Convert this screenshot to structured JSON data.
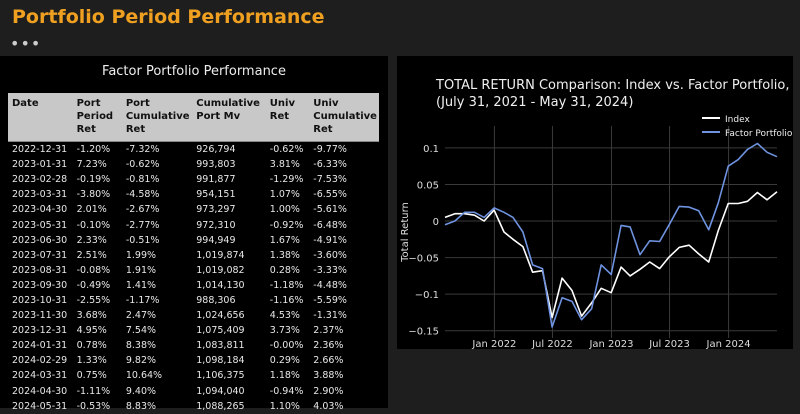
{
  "page": {
    "title": "Portfolio Period Performance",
    "menu_glyph": "•••"
  },
  "table": {
    "title": "Factor Portfolio Performance",
    "headers": [
      "Date",
      "Port Period Ret",
      "Port Cumulative Ret",
      "Cumulative Port Mv",
      "Univ Ret",
      "Univ Cumulative Ret"
    ],
    "rows": [
      [
        "2022-12-31",
        "-1.20%",
        "-7.32%",
        "926,794",
        "-0.62%",
        "-9.77%"
      ],
      [
        "2023-01-31",
        "7.23%",
        "-0.62%",
        "993,803",
        "3.81%",
        "-6.33%"
      ],
      [
        "2023-02-28",
        "-0.19%",
        "-0.81%",
        "991,877",
        "-1.29%",
        "-7.53%"
      ],
      [
        "2023-03-31",
        "-3.80%",
        "-4.58%",
        "954,151",
        "1.07%",
        "-6.55%"
      ],
      [
        "2023-04-30",
        "2.01%",
        "-2.67%",
        "973,297",
        "1.00%",
        "-5.61%"
      ],
      [
        "2023-05-31",
        "-0.10%",
        "-2.77%",
        "972,310",
        "-0.92%",
        "-6.48%"
      ],
      [
        "2023-06-30",
        "2.33%",
        "-0.51%",
        "994,949",
        "1.67%",
        "-4.91%"
      ],
      [
        "2023-07-31",
        "2.51%",
        "1.99%",
        "1,019,874",
        "1.38%",
        "-3.60%"
      ],
      [
        "2023-08-31",
        "-0.08%",
        "1.91%",
        "1,019,082",
        "0.28%",
        "-3.33%"
      ],
      [
        "2023-09-30",
        "-0.49%",
        "1.41%",
        "1,014,130",
        "-1.18%",
        "-4.48%"
      ],
      [
        "2023-10-31",
        "-2.55%",
        "-1.17%",
        "988,306",
        "-1.16%",
        "-5.59%"
      ],
      [
        "2023-11-30",
        "3.68%",
        "2.47%",
        "1,024,656",
        "4.53%",
        "-1.31%"
      ],
      [
        "2023-12-31",
        "4.95%",
        "7.54%",
        "1,075,409",
        "3.73%",
        "2.37%"
      ],
      [
        "2024-01-31",
        "0.78%",
        "8.38%",
        "1,083,811",
        "-0.00%",
        "2.36%"
      ],
      [
        "2024-02-29",
        "1.33%",
        "9.82%",
        "1,098,184",
        "0.29%",
        "2.66%"
      ],
      [
        "2024-03-31",
        "0.75%",
        "10.64%",
        "1,106,375",
        "1.18%",
        "3.88%"
      ],
      [
        "2024-04-30",
        "-1.11%",
        "9.40%",
        "1,094,040",
        "-0.94%",
        "2.90%"
      ],
      [
        "2024-05-31",
        "-0.53%",
        "8.83%",
        "1,088,265",
        "1.10%",
        "4.03%"
      ]
    ]
  },
  "colors": {
    "title_accent": "#f0a020",
    "index_line": "#ffffff",
    "factor_line": "#6f93e0"
  },
  "chart_data": {
    "type": "line",
    "title": "TOTAL RETURN Comparison: Index vs. Factor Portfolio,",
    "subtitle": "(July 31, 2021 - May 31, 2024)",
    "xlabel": "",
    "ylabel": "Total Return",
    "legend_placement": "top-right",
    "xlim": [
      "2021-07-31",
      "2024-05-31"
    ],
    "ylim": [
      -0.16,
      0.13
    ],
    "yticks": [
      0.1,
      0.05,
      0,
      -0.05,
      -0.1,
      -0.15
    ],
    "ytick_labels": [
      "0.1",
      "0.05",
      "0",
      "−0.05",
      "−0.1",
      "−0.15"
    ],
    "xticks": [
      "2022-01-01",
      "2022-07-01",
      "2023-01-01",
      "2023-07-01",
      "2024-01-01"
    ],
    "xtick_labels": [
      "Jan 2022",
      "Jul 2022",
      "Jan 2023",
      "Jul 2023",
      "Jan 2024"
    ],
    "grid": true,
    "x": [
      "2021-07-31",
      "2021-08-31",
      "2021-09-30",
      "2021-10-31",
      "2021-11-30",
      "2021-12-31",
      "2022-01-31",
      "2022-02-28",
      "2022-03-31",
      "2022-04-30",
      "2022-05-31",
      "2022-06-30",
      "2022-07-31",
      "2022-08-31",
      "2022-09-30",
      "2022-10-31",
      "2022-11-30",
      "2022-12-31",
      "2023-01-31",
      "2023-02-28",
      "2023-03-31",
      "2023-04-30",
      "2023-05-31",
      "2023-06-30",
      "2023-07-31",
      "2023-08-31",
      "2023-09-30",
      "2023-10-31",
      "2023-11-30",
      "2023-12-31",
      "2024-01-31",
      "2024-02-29",
      "2024-03-31",
      "2024-04-30",
      "2024-05-31"
    ],
    "series": [
      {
        "name": "Index",
        "values": [
          0.005,
          0.01,
          0.01,
          0.008,
          0.0,
          0.015,
          -0.015,
          -0.025,
          -0.035,
          -0.07,
          -0.068,
          -0.132,
          -0.078,
          -0.095,
          -0.13,
          -0.112,
          -0.092,
          -0.098,
          -0.063,
          -0.075,
          -0.066,
          -0.056,
          -0.065,
          -0.049,
          -0.036,
          -0.033,
          -0.045,
          -0.056,
          -0.013,
          0.024,
          0.024,
          0.027,
          0.039,
          0.029,
          0.04
        ]
      },
      {
        "name": "Factor Portfolio",
        "values": [
          -0.005,
          0.0,
          0.012,
          0.012,
          0.005,
          0.018,
          0.012,
          0.005,
          -0.015,
          -0.06,
          -0.065,
          -0.145,
          -0.105,
          -0.11,
          -0.135,
          -0.12,
          -0.06,
          -0.073,
          -0.006,
          -0.008,
          -0.046,
          -0.027,
          -0.028,
          -0.005,
          0.02,
          0.019,
          0.014,
          -0.012,
          0.025,
          0.075,
          0.084,
          0.098,
          0.106,
          0.094,
          0.088
        ]
      }
    ]
  }
}
